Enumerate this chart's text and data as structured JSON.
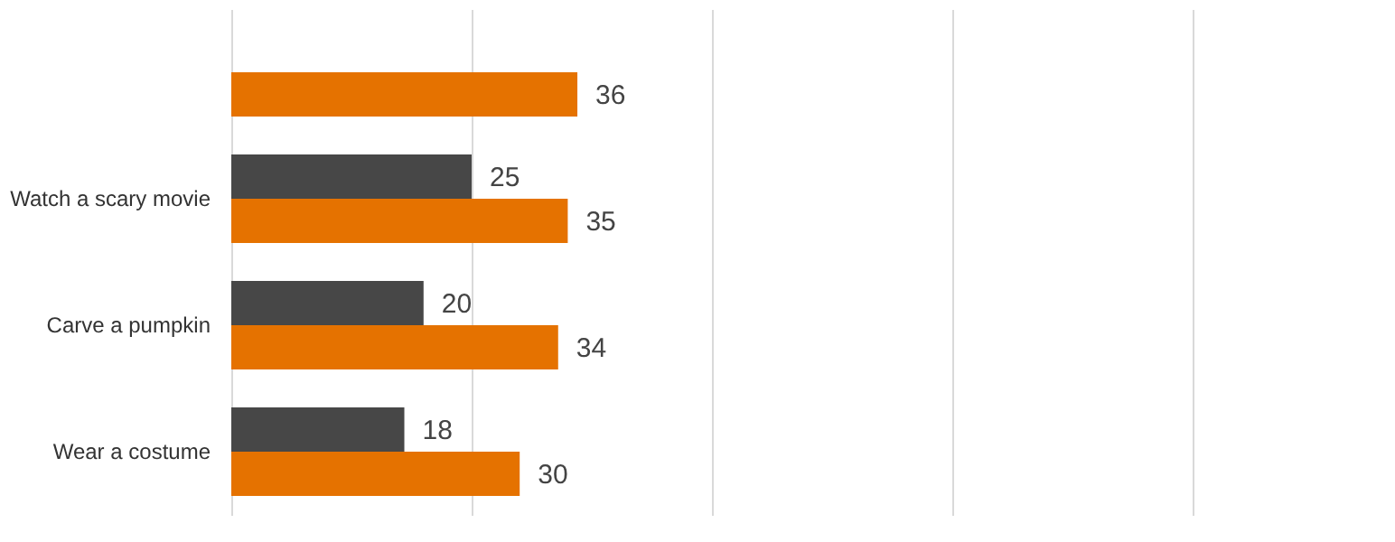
{
  "chart_data": {
    "type": "bar",
    "orientation": "horizontal",
    "categories": [
      null,
      "Watch a scary movie",
      "Carve a pumpkin",
      "Wear a costume"
    ],
    "series": [
      {
        "color": "#474747",
        "values": [
          null,
          25,
          20,
          18
        ]
      },
      {
        "color": "#e57200",
        "values": [
          36,
          35,
          34,
          30
        ]
      }
    ],
    "xlim": [
      0,
      100
    ],
    "xticks": [
      0,
      25,
      50,
      75,
      100
    ],
    "tick_labels": "y",
    "grid": "x",
    "data_labels": true,
    "legend": false
  }
}
